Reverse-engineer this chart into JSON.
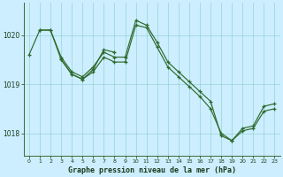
{
  "title": "Graphe pression niveau de la mer (hPa)",
  "background_color": "#cceeff",
  "grid_color": "#88cccc",
  "line_color": "#2d6a2d",
  "x_ticks": [
    0,
    1,
    2,
    3,
    4,
    5,
    6,
    7,
    8,
    9,
    10,
    11,
    12,
    13,
    14,
    15,
    16,
    17,
    18,
    19,
    20,
    21,
    22,
    23
  ],
  "y_ticks": [
    1018,
    1019,
    1020
  ],
  "ylim": [
    1017.55,
    1020.65
  ],
  "xlim": [
    -0.5,
    23.5
  ],
  "series1_x": [
    0,
    1,
    2,
    3,
    4,
    5,
    6,
    7,
    8,
    9,
    10,
    11,
    12,
    13,
    14,
    15,
    16,
    17,
    18,
    19,
    20,
    21,
    22,
    23
  ],
  "series1_y": [
    1019.6,
    1020.1,
    1020.1,
    1019.55,
    1019.25,
    1019.15,
    1019.35,
    1019.65,
    1019.55,
    1019.55,
    1020.3,
    1020.2,
    1019.85,
    1019.45,
    1019.25,
    1019.05,
    1018.85,
    1018.65,
    1017.95,
    1017.85,
    1018.1,
    1018.15,
    1018.55,
    1018.6
  ],
  "series2_x": [
    1,
    2,
    3,
    4,
    5,
    6,
    7,
    8,
    9,
    10,
    11,
    12,
    13,
    14,
    15,
    16,
    17,
    18,
    19,
    20,
    21,
    22,
    23
  ],
  "series2_y": [
    1020.1,
    1020.1,
    1019.5,
    1019.2,
    1019.1,
    1019.25,
    1019.55,
    1019.45,
    1019.45,
    1020.2,
    1020.15,
    1019.75,
    1019.35,
    1019.15,
    1018.95,
    1018.75,
    1018.5,
    1018.0,
    1017.85,
    1018.05,
    1018.1,
    1018.45,
    1018.5
  ],
  "series3_x": [
    3,
    4,
    5,
    6,
    7,
    8
  ],
  "series3_y": [
    1019.5,
    1019.2,
    1019.1,
    1019.3,
    1019.7,
    1019.65
  ],
  "figsize": [
    3.2,
    2.0
  ],
  "dpi": 100
}
